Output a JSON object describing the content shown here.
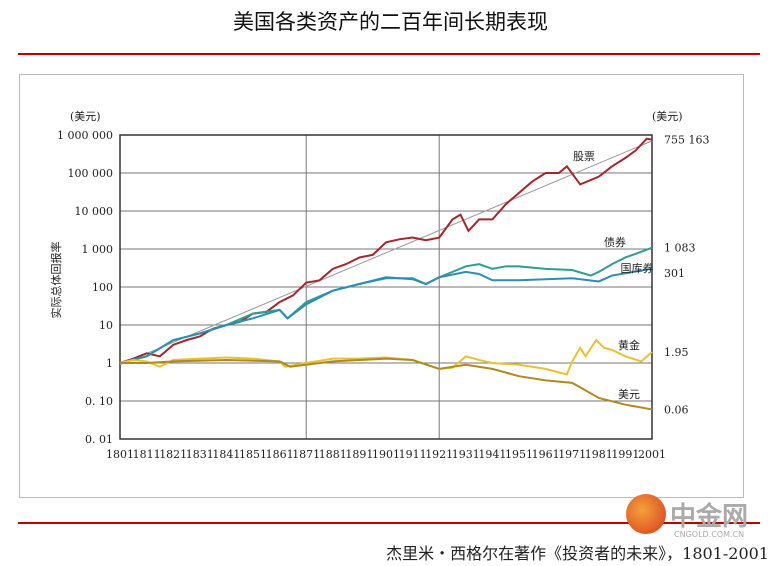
{
  "chart_data": {
    "type": "line",
    "title": "美国各类资产的二百年间长期表现",
    "ylabel": "实际总体回报率",
    "y_unit_left": "(美元)",
    "y_unit_right": "(美元)",
    "yscale": "log",
    "ylim": [
      0.01,
      1000000
    ],
    "xlim": [
      1801,
      2001
    ],
    "y_ticks": [
      {
        "v": 1000000,
        "label": "1 000 000"
      },
      {
        "v": 100000,
        "label": "100 000"
      },
      {
        "v": 10000,
        "label": "10 000"
      },
      {
        "v": 1000,
        "label": "1 000"
      },
      {
        "v": 100,
        "label": "100"
      },
      {
        "v": 10,
        "label": "10"
      },
      {
        "v": 1,
        "label": "1"
      },
      {
        "v": 0.1,
        "label": "0. 10"
      },
      {
        "v": 0.01,
        "label": "0. 01"
      }
    ],
    "x_ticks": [
      "1801",
      "1811",
      "1821",
      "1831",
      "1841",
      "1851",
      "1861",
      "1871",
      "1881",
      "1891",
      "1901",
      "1911",
      "1921",
      "1931",
      "1941",
      "1951",
      "1961",
      "1971",
      "1981",
      "1991",
      "2001"
    ],
    "series": [
      {
        "name": "股票",
        "color": "#a6262b",
        "end_label": "755 163",
        "x": [
          1801,
          1806,
          1811,
          1816,
          1821,
          1826,
          1831,
          1836,
          1841,
          1846,
          1851,
          1856,
          1861,
          1866,
          1871,
          1876,
          1881,
          1886,
          1891,
          1896,
          1901,
          1906,
          1911,
          1916,
          1921,
          1926,
          1929,
          1932,
          1936,
          1941,
          1946,
          1951,
          1956,
          1961,
          1966,
          1969,
          1974,
          1981,
          1986,
          1991,
          1995,
          1999,
          2001
        ],
        "y": [
          1,
          1.3,
          1.8,
          1.5,
          3,
          4,
          5,
          8,
          10,
          12,
          20,
          22,
          40,
          60,
          130,
          150,
          300,
          400,
          600,
          700,
          1500,
          1800,
          2000,
          1700,
          2000,
          6000,
          8000,
          3000,
          6000,
          6000,
          15000,
          30000,
          60000,
          100000,
          100000,
          150000,
          50000,
          80000,
          150000,
          250000,
          400000,
          800000,
          755163
        ]
      },
      {
        "name": "债券",
        "color": "#2e9e8e",
        "end_label": "1 083",
        "x": [
          1801,
          1811,
          1821,
          1831,
          1841,
          1851,
          1861,
          1864,
          1871,
          1881,
          1891,
          1901,
          1911,
          1916,
          1921,
          1926,
          1931,
          1936,
          1941,
          1946,
          1951,
          1961,
          1971,
          1978,
          1981,
          1986,
          1991,
          1996,
          2001
        ],
        "y": [
          1,
          1.5,
          4,
          6,
          10,
          20,
          25,
          15,
          40,
          80,
          120,
          170,
          170,
          120,
          180,
          250,
          350,
          400,
          300,
          350,
          350,
          300,
          280,
          200,
          250,
          400,
          600,
          800,
          1083
        ]
      },
      {
        "name": "国库券",
        "color": "#2a8fb3",
        "end_label": "301",
        "x": [
          1801,
          1811,
          1821,
          1831,
          1841,
          1851,
          1861,
          1864,
          1871,
          1881,
          1891,
          1901,
          1911,
          1916,
          1921,
          1931,
          1936,
          1941,
          1951,
          1961,
          1971,
          1981,
          1986,
          1991,
          2001
        ],
        "y": [
          1,
          1.5,
          4,
          6,
          10,
          15,
          25,
          15,
          35,
          80,
          120,
          180,
          160,
          120,
          180,
          250,
          220,
          150,
          150,
          160,
          170,
          140,
          200,
          230,
          301
        ]
      },
      {
        "name": "黄金",
        "color": "#e8c232",
        "end_label": "1.95",
        "x": [
          1801,
          1806,
          1811,
          1816,
          1821,
          1831,
          1841,
          1851,
          1861,
          1863,
          1871,
          1881,
          1891,
          1901,
          1911,
          1921,
          1926,
          1931,
          1936,
          1941,
          1951,
          1961,
          1969,
          1971,
          1974,
          1976,
          1980,
          1983,
          1986,
          1991,
          1997,
          2001
        ],
        "y": [
          1,
          1.2,
          1.1,
          0.8,
          1.2,
          1.3,
          1.4,
          1.3,
          1.1,
          0.8,
          1.0,
          1.3,
          1.3,
          1.4,
          1.2,
          0.7,
          0.75,
          1.5,
          1.2,
          1.0,
          0.9,
          0.7,
          0.5,
          1.1,
          2.5,
          1.5,
          4,
          2.5,
          2.2,
          1.5,
          1.1,
          1.95
        ]
      },
      {
        "name": "美元",
        "color": "#b08a1c",
        "end_label": "0.06",
        "x": [
          1801,
          1811,
          1821,
          1841,
          1861,
          1865,
          1881,
          1901,
          1911,
          1921,
          1931,
          1941,
          1951,
          1961,
          1971,
          1981,
          1991,
          2001
        ],
        "y": [
          1,
          1.0,
          1.1,
          1.2,
          1.1,
          0.8,
          1.1,
          1.3,
          1.2,
          0.7,
          0.9,
          0.7,
          0.45,
          0.35,
          0.3,
          0.12,
          0.08,
          0.06
        ]
      }
    ],
    "trend": {
      "x": [
        1801,
        2001
      ],
      "y": [
        0.9,
        700000
      ]
    }
  },
  "caption": "杰里米・西格尔在著作《投资者的未来》，1801-2001",
  "watermark": {
    "name": "中金网",
    "site": "CNGOLD.COM.CN"
  }
}
